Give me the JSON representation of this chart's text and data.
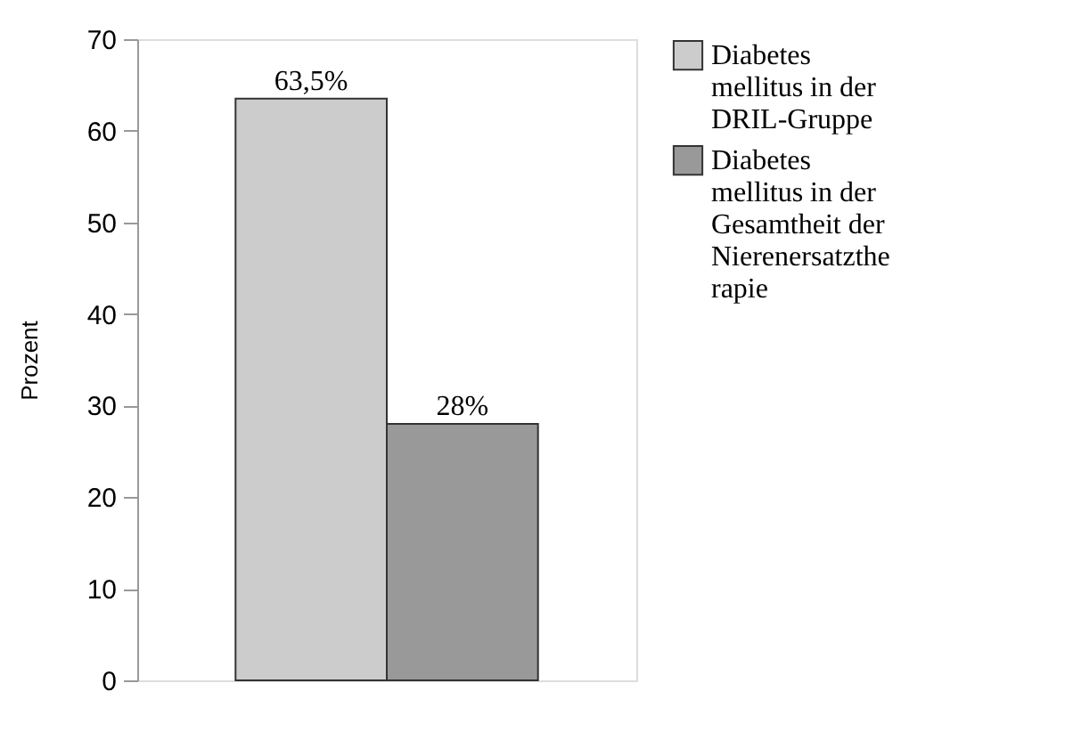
{
  "chart_data": {
    "type": "bar",
    "categories": [
      null
    ],
    "ylabel": "Prozent",
    "ylim": [
      0,
      70
    ],
    "yticks": [
      0,
      10,
      20,
      30,
      40,
      50,
      60,
      70
    ],
    "grid": false,
    "legend": "right",
    "series": [
      {
        "name": "Diabetes mellitus in der DRIL-Gruppe",
        "color": "#cccccc",
        "values": [
          63.5
        ],
        "value_labels": [
          "63,5%"
        ]
      },
      {
        "name": "Diabetes mellitus in der Gesamtheit der Nierenersatztherapie",
        "color": "#999999",
        "values": [
          28
        ],
        "value_labels": [
          "28%"
        ]
      }
    ]
  }
}
